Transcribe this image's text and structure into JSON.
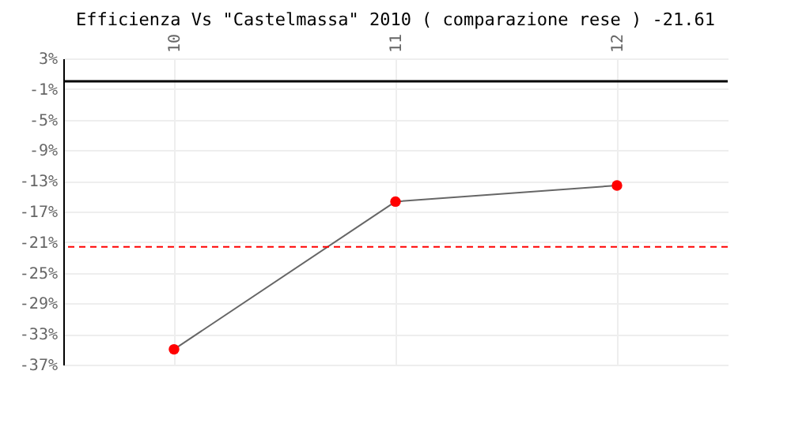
{
  "chart_data": {
    "type": "line",
    "title": "Efficienza Vs \"Castelmassa\" 2010 ( comparazione rese ) -21.61",
    "categories": [
      "10",
      "11",
      "12"
    ],
    "series": [
      {
        "color": "#ff0000",
        "values": [
          -35,
          -15.7,
          -13.6
        ]
      }
    ],
    "ylim": [
      -37,
      3
    ],
    "yticks": [
      {
        "value": 3,
        "label": "3%"
      },
      {
        "value": -1,
        "label": "-1%"
      },
      {
        "value": -5,
        "label": "-5%"
      },
      {
        "value": -9,
        "label": "-9%"
      },
      {
        "value": -13,
        "label": "-13%"
      },
      {
        "value": -17,
        "label": "-17%"
      },
      {
        "value": -21,
        "label": "-21%"
      },
      {
        "value": -25,
        "label": "-25%"
      },
      {
        "value": -29,
        "label": "-29%"
      },
      {
        "value": -33,
        "label": "-33%"
      },
      {
        "value": -37,
        "label": "-37%"
      }
    ],
    "ref_lines": [
      {
        "axis": "y",
        "value": 0,
        "color": "#000000",
        "line_style": "solid"
      },
      {
        "axis": "y",
        "value": -21.61,
        "color": "#ff0000",
        "line_style": "dashed"
      }
    ],
    "grid": true,
    "marker": "circle"
  }
}
